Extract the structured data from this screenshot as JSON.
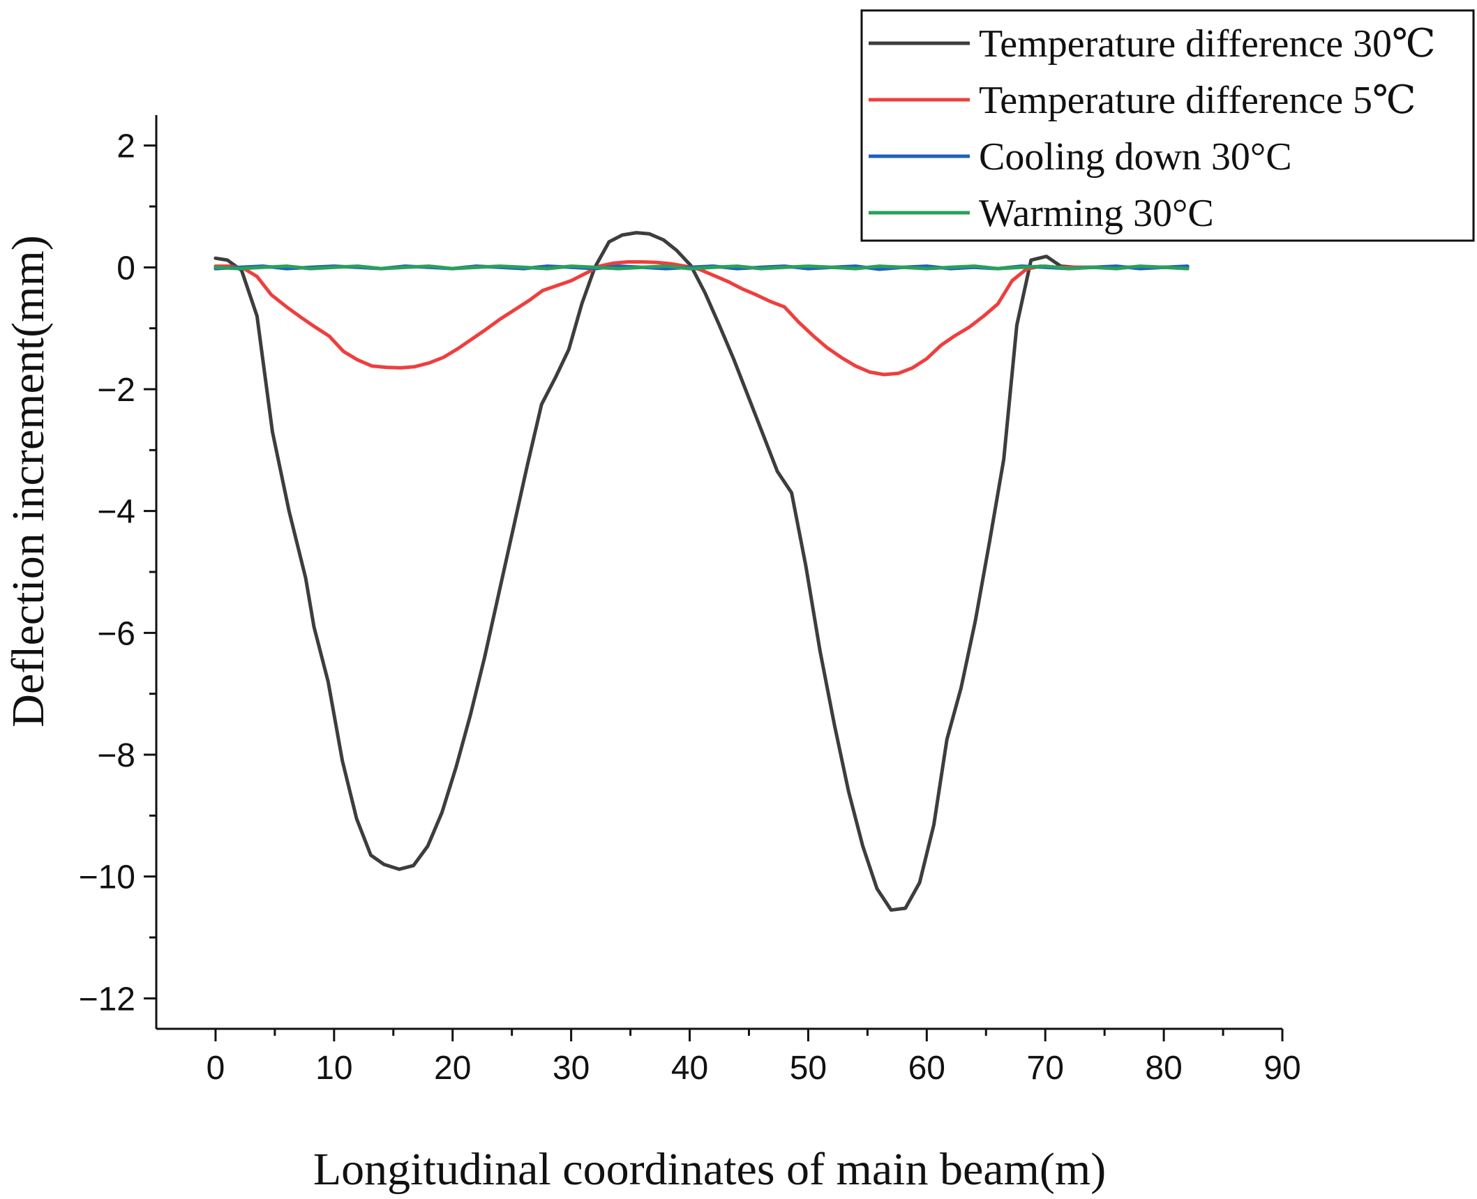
{
  "chart_data": {
    "type": "line",
    "title": "",
    "xlabel": "Longitudinal coordinates of main beam(m)",
    "ylabel": "Deflection increment(mm)",
    "xlim": [
      -5,
      90
    ],
    "ylim": [
      -12.5,
      2.5
    ],
    "xticks": [
      0,
      10,
      20,
      30,
      40,
      50,
      60,
      70,
      80,
      90
    ],
    "xtick_labels": [
      "0",
      "10",
      "20",
      "30",
      "40",
      "50",
      "60",
      "70",
      "80",
      "90"
    ],
    "yticks": [
      2,
      0,
      -2,
      -4,
      -6,
      -8,
      -10,
      -12
    ],
    "ytick_labels": [
      "2",
      "0",
      "−2",
      "−4",
      "−6",
      "−8",
      "−10",
      "−12"
    ],
    "legend_position": "top-right",
    "series": [
      {
        "name": "Temperature difference 30℃",
        "color": "#3d3d3d",
        "x": [
          0,
          1,
          2.2,
          3.5,
          4.8,
          6.2,
          7.6,
          8.3,
          9.5,
          10.7,
          11.9,
          13.1,
          14.2,
          15.5,
          16.7,
          17.9,
          19.1,
          20.3,
          21.5,
          22.7,
          23.9,
          25.1,
          26.3,
          27.5,
          28.7,
          29.8,
          30.9,
          32.0,
          33.2,
          34.3,
          35.5,
          36.6,
          37.8,
          38.9,
          40.1,
          41.3,
          42.5,
          43.7,
          44.9,
          46.1,
          47.4,
          48.6,
          49.8,
          51.0,
          52.2,
          53.4,
          54.6,
          55.8,
          57.0,
          58.2,
          59.4,
          60.6,
          61.7,
          62.9,
          64.1,
          65.3,
          66.5,
          67.6,
          68.8,
          70.1,
          71.3,
          72.5,
          74.0,
          76.0,
          78.0,
          80.0,
          82.0
        ],
        "y": [
          0.15,
          0.12,
          -0.05,
          -0.8,
          -2.7,
          -4.0,
          -5.1,
          -5.9,
          -6.8,
          -8.1,
          -9.05,
          -9.65,
          -9.8,
          -9.88,
          -9.82,
          -9.5,
          -8.95,
          -8.2,
          -7.35,
          -6.4,
          -5.35,
          -4.3,
          -3.25,
          -2.25,
          -1.8,
          -1.35,
          -0.6,
          0.0,
          0.42,
          0.53,
          0.57,
          0.55,
          0.45,
          0.28,
          0.03,
          -0.42,
          -0.95,
          -1.5,
          -2.1,
          -2.7,
          -3.35,
          -3.7,
          -4.9,
          -6.3,
          -7.5,
          -8.6,
          -9.5,
          -10.2,
          -10.55,
          -10.52,
          -10.1,
          -9.15,
          -7.75,
          -6.9,
          -5.8,
          -4.5,
          -3.15,
          -0.95,
          0.12,
          0.18,
          0.02,
          0.0,
          0.0,
          0.0,
          0.0,
          0.0,
          0.0
        ]
      },
      {
        "name": "Temperature difference 5℃",
        "color": "#ef3e3e",
        "x": [
          0,
          1.2,
          2.4,
          3.5,
          4.7,
          6.0,
          7.2,
          8.4,
          9.6,
          10.8,
          12.0,
          13.2,
          14.4,
          15.6,
          16.8,
          18.0,
          19.2,
          20.4,
          21.6,
          22.8,
          24.0,
          25.2,
          26.4,
          27.6,
          28.8,
          30.0,
          31.2,
          32.4,
          33.6,
          34.8,
          36.0,
          37.2,
          38.4,
          39.6,
          40.8,
          42.0,
          43.2,
          44.4,
          45.6,
          46.8,
          48.0,
          49.2,
          50.4,
          51.6,
          52.8,
          54.0,
          55.2,
          56.4,
          57.6,
          58.8,
          60.0,
          61.2,
          62.4,
          63.6,
          64.8,
          66.0,
          67.2,
          68.4,
          69.6,
          71.0,
          74.0,
          78.0,
          82.0
        ],
        "y": [
          0.02,
          0.02,
          -0.02,
          -0.15,
          -0.45,
          -0.65,
          -0.82,
          -0.98,
          -1.13,
          -1.38,
          -1.52,
          -1.62,
          -1.64,
          -1.65,
          -1.63,
          -1.57,
          -1.48,
          -1.34,
          -1.18,
          -1.02,
          -0.85,
          -0.7,
          -0.55,
          -0.38,
          -0.3,
          -0.22,
          -0.1,
          0.02,
          0.07,
          0.09,
          0.09,
          0.08,
          0.06,
          0.02,
          -0.03,
          -0.13,
          -0.23,
          -0.35,
          -0.45,
          -0.56,
          -0.65,
          -0.9,
          -1.12,
          -1.32,
          -1.48,
          -1.62,
          -1.72,
          -1.76,
          -1.74,
          -1.65,
          -1.5,
          -1.28,
          -1.12,
          -0.98,
          -0.8,
          -0.6,
          -0.22,
          -0.03,
          0.02,
          0.0,
          0.0,
          0.0,
          0.0
        ]
      },
      {
        "name": "Cooling down 30°C",
        "color": "#1f5fbf",
        "x": [
          0,
          2,
          4,
          6,
          8,
          10,
          12,
          14,
          16,
          18,
          20,
          22,
          24,
          26,
          28,
          30,
          32,
          34,
          36,
          38,
          40,
          42,
          44,
          46,
          48,
          50,
          52,
          54,
          56,
          58,
          60,
          62,
          64,
          66,
          68,
          70,
          72,
          74,
          76,
          78,
          80,
          82
        ],
        "y": [
          -0.02,
          0.0,
          0.02,
          -0.02,
          0.0,
          0.02,
          0.0,
          -0.02,
          0.02,
          0.0,
          -0.02,
          0.02,
          0.0,
          -0.02,
          0.02,
          0.0,
          -0.02,
          0.02,
          0.0,
          -0.02,
          0.0,
          0.02,
          -0.02,
          0.0,
          0.02,
          -0.02,
          0.0,
          0.02,
          -0.03,
          0.0,
          0.02,
          -0.02,
          0.0,
          -0.02,
          0.02,
          0.0,
          -0.02,
          0.0,
          0.02,
          -0.02,
          0.0,
          0.02
        ]
      },
      {
        "name": "Warming 30°C",
        "color": "#2aa05a",
        "x": [
          0,
          2,
          4,
          6,
          8,
          10,
          12,
          14,
          16,
          18,
          20,
          22,
          24,
          26,
          28,
          30,
          32,
          34,
          36,
          38,
          40,
          42,
          44,
          46,
          48,
          50,
          52,
          54,
          56,
          58,
          60,
          62,
          64,
          66,
          68,
          70,
          72,
          74,
          76,
          78,
          80,
          82
        ],
        "y": [
          0.0,
          -0.02,
          0.0,
          0.02,
          -0.02,
          0.0,
          0.02,
          -0.02,
          0.0,
          0.02,
          -0.02,
          0.0,
          0.02,
          0.0,
          -0.02,
          0.02,
          0.0,
          -0.02,
          0.0,
          0.02,
          -0.02,
          0.0,
          0.02,
          -0.02,
          0.0,
          0.02,
          0.0,
          -0.02,
          0.02,
          0.0,
          -0.02,
          0.0,
          0.02,
          -0.02,
          0.0,
          0.02,
          -0.02,
          0.0,
          -0.02,
          0.02,
          0.0,
          -0.02
        ]
      }
    ]
  }
}
